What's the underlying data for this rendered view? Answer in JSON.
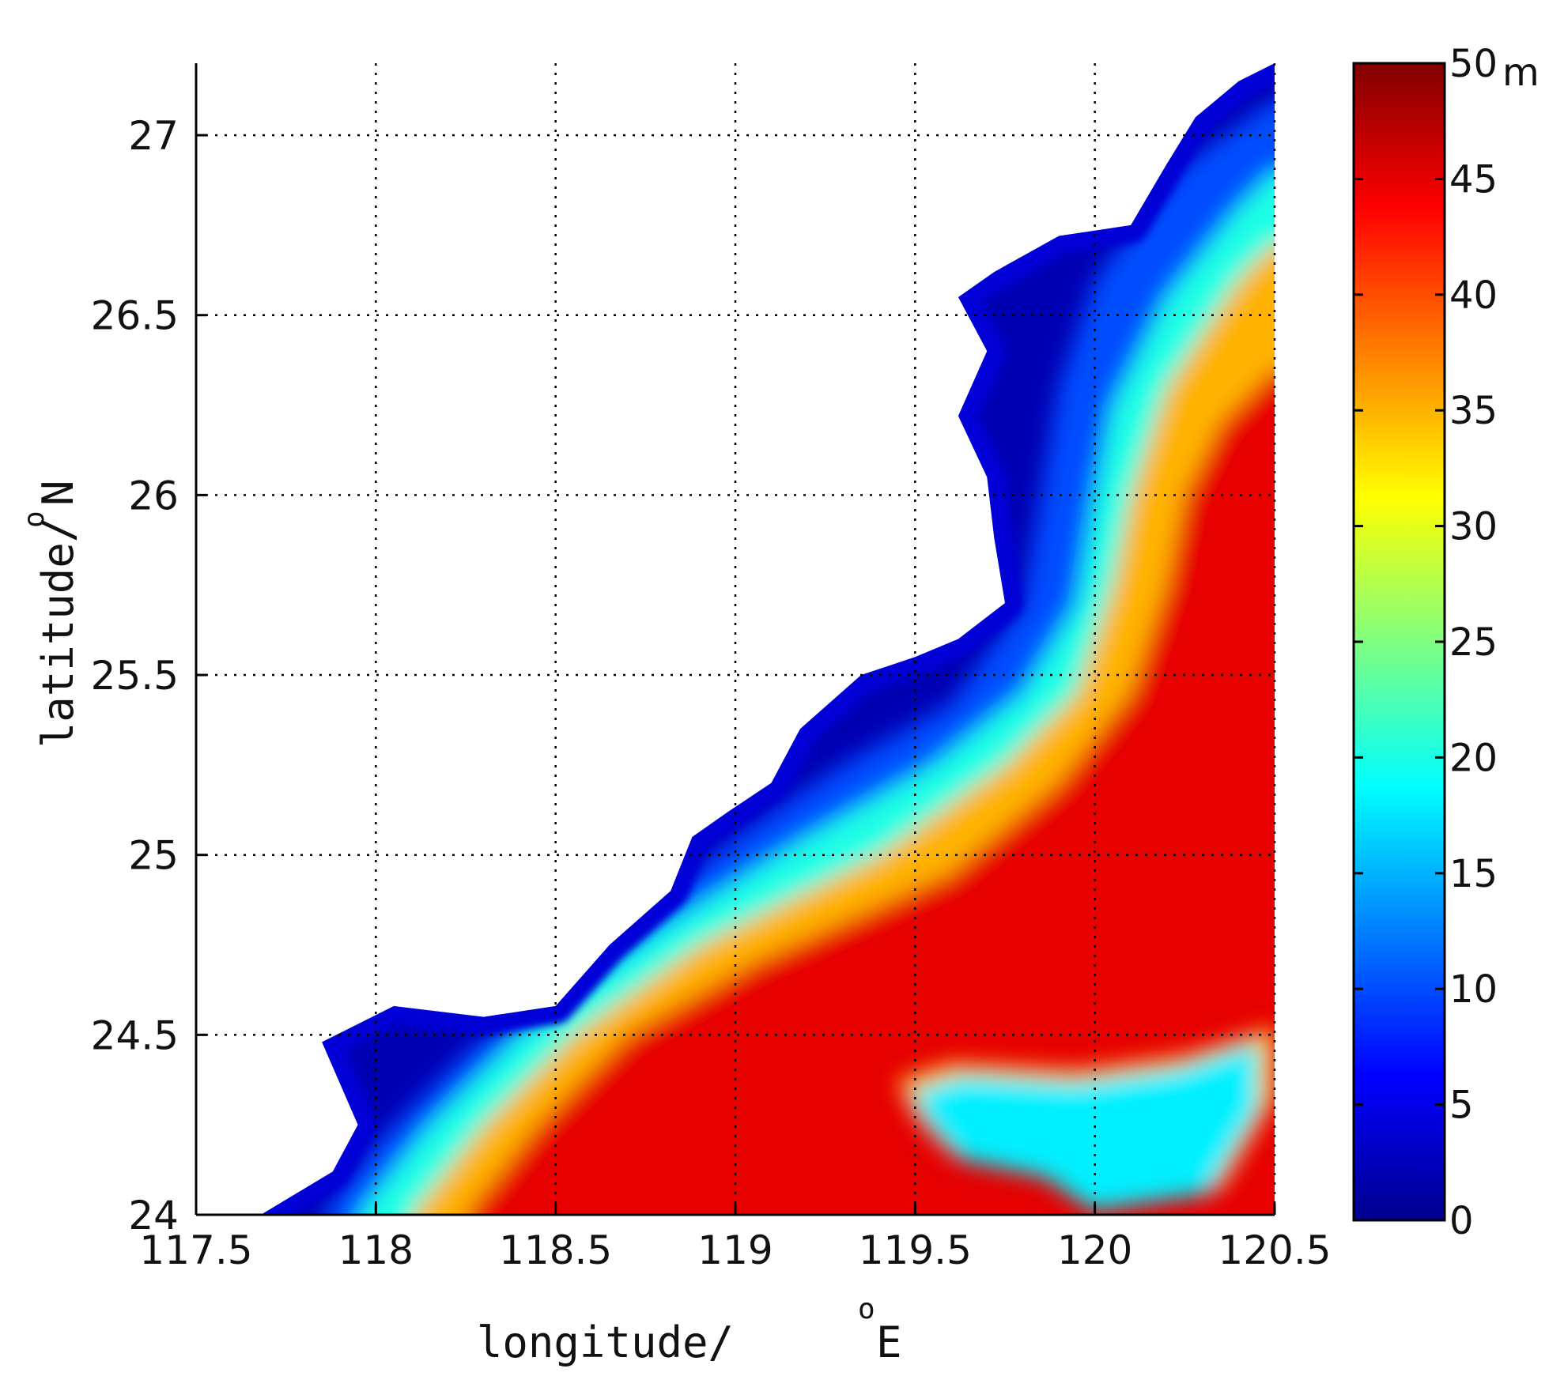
{
  "chart_data": {
    "type": "heatmap",
    "title": "",
    "xlabel": "longitude/ ",
    "xlabel_sup": "o",
    "xlabel_unit": "E",
    "ylabel": "latitude/ ",
    "ylabel_sup": "o",
    "ylabel_unit": "N",
    "xlim": [
      117.5,
      120.5
    ],
    "ylim": [
      24,
      27.2
    ],
    "xticks": [
      "117.5",
      "118",
      "118.5",
      "119",
      "119.5",
      "120",
      "120.5"
    ],
    "yticks": [
      "24",
      "24.5",
      "25",
      "25.5",
      "26",
      "26.5",
      "27"
    ],
    "grid": true,
    "colorbar": {
      "range": [
        0,
        50
      ],
      "ticks": [
        "0",
        "5",
        "10",
        "15",
        "20",
        "25",
        "30",
        "35",
        "40",
        "45",
        "50"
      ],
      "unit": "m",
      "colormap": "jet"
    },
    "coastline_lon_lat": [
      [
        117.68,
        24.0
      ],
      [
        117.88,
        24.12
      ],
      [
        117.95,
        24.25
      ],
      [
        117.85,
        24.48
      ],
      [
        118.05,
        24.58
      ],
      [
        118.3,
        24.55
      ],
      [
        118.5,
        24.58
      ],
      [
        118.65,
        24.75
      ],
      [
        118.82,
        24.9
      ],
      [
        118.88,
        25.05
      ],
      [
        118.98,
        25.12
      ],
      [
        119.1,
        25.2
      ],
      [
        119.18,
        25.35
      ],
      [
        119.35,
        25.5
      ],
      [
        119.5,
        25.55
      ],
      [
        119.62,
        25.6
      ],
      [
        119.75,
        25.7
      ],
      [
        119.72,
        25.88
      ],
      [
        119.7,
        26.05
      ],
      [
        119.62,
        26.22
      ],
      [
        119.7,
        26.4
      ],
      [
        119.62,
        26.55
      ],
      [
        119.72,
        26.62
      ],
      [
        119.9,
        26.72
      ],
      [
        120.1,
        26.75
      ],
      [
        120.2,
        26.92
      ],
      [
        120.28,
        27.05
      ],
      [
        120.4,
        27.15
      ],
      [
        120.5,
        27.2
      ]
    ],
    "depth_contours_m": [
      {
        "depth": 10,
        "points": [
          [
            117.85,
            24.0
          ],
          [
            118.0,
            24.2
          ],
          [
            118.25,
            24.45
          ],
          [
            118.7,
            24.8
          ],
          [
            119.0,
            25.05
          ],
          [
            119.3,
            25.25
          ],
          [
            119.6,
            25.42
          ],
          [
            119.8,
            25.7
          ],
          [
            119.85,
            26.0
          ],
          [
            119.9,
            26.3
          ],
          [
            120.0,
            26.6
          ],
          [
            120.25,
            26.92
          ],
          [
            120.5,
            27.1
          ]
        ]
      },
      {
        "depth": 20,
        "points": [
          [
            117.95,
            24.0
          ],
          [
            118.15,
            24.25
          ],
          [
            118.4,
            24.5
          ],
          [
            118.8,
            24.8
          ],
          [
            119.2,
            25.05
          ],
          [
            119.55,
            25.25
          ],
          [
            119.8,
            25.45
          ],
          [
            119.95,
            25.7
          ],
          [
            120.0,
            26.0
          ],
          [
            120.05,
            26.25
          ],
          [
            120.2,
            26.55
          ],
          [
            120.4,
            26.8
          ],
          [
            120.5,
            26.9
          ]
        ]
      },
      {
        "depth": 35,
        "points": [
          [
            118.1,
            24.0
          ],
          [
            118.3,
            24.25
          ],
          [
            118.55,
            24.5
          ],
          [
            118.9,
            24.75
          ],
          [
            119.4,
            25.0
          ],
          [
            119.75,
            25.25
          ],
          [
            119.95,
            25.45
          ],
          [
            120.05,
            25.75
          ],
          [
            120.1,
            26.0
          ],
          [
            120.2,
            26.3
          ],
          [
            120.4,
            26.6
          ],
          [
            120.5,
            26.7
          ]
        ]
      },
      {
        "depth": 45,
        "points": [
          [
            118.25,
            24.0
          ],
          [
            118.45,
            24.25
          ],
          [
            118.7,
            24.5
          ],
          [
            119.05,
            24.7
          ],
          [
            119.6,
            24.95
          ],
          [
            119.9,
            25.2
          ],
          [
            120.1,
            25.45
          ],
          [
            120.2,
            25.75
          ],
          [
            120.25,
            26.0
          ],
          [
            120.35,
            26.2
          ],
          [
            120.5,
            26.35
          ]
        ]
      }
    ],
    "shallow_bank": {
      "depth_approx_m": 18,
      "outline": [
        [
          119.45,
          24.35
        ],
        [
          119.6,
          24.4
        ],
        [
          119.95,
          24.38
        ],
        [
          120.25,
          24.42
        ],
        [
          120.5,
          24.5
        ],
        [
          120.5,
          24.3
        ],
        [
          120.35,
          24.05
        ],
        [
          120.0,
          24.0
        ],
        [
          119.85,
          24.1
        ],
        [
          119.6,
          24.15
        ],
        [
          119.5,
          24.25
        ]
      ]
    }
  }
}
